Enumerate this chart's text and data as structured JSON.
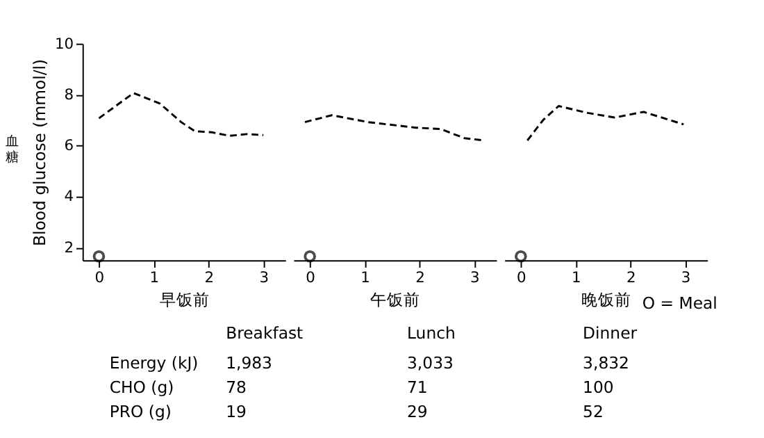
{
  "chart_data": [
    {
      "type": "line",
      "ylabel": "Blood glucose (mmol/l)",
      "xlabel": "早饭前",
      "xlim": [
        -0.3,
        3.4
      ],
      "xticks": [
        0,
        1,
        2,
        3
      ],
      "ylim": [
        1.5,
        10
      ],
      "yticks": [
        2,
        4,
        6,
        8,
        10
      ],
      "grid": false,
      "annotations": [
        "血糖"
      ],
      "series": [
        {
          "color": "#000000",
          "line_style": "dashed",
          "x": [
            0,
            0.63,
            1.11,
            1.5,
            1.75,
            2.06,
            2.38,
            2.7,
            3.0
          ],
          "values": [
            7.07,
            8.06,
            7.65,
            6.92,
            6.56,
            6.52,
            6.38,
            6.45,
            6.41
          ]
        },
        {
          "type": "scatter",
          "marker": "circle",
          "color": "#000000",
          "x": [
            0
          ],
          "values": [
            1.65
          ]
        }
      ]
    },
    {
      "type": "line",
      "xlabel": "午饭前",
      "xlim": [
        -0.3,
        3.4
      ],
      "xticks": [
        0,
        1,
        2,
        3
      ],
      "ylim": [
        1.5,
        10
      ],
      "tick_labels": "x",
      "grid": false,
      "series": [
        {
          "color": "#000000",
          "line_style": "dashed",
          "x": [
            -0.09,
            0.4,
            1.06,
            1.94,
            2.38,
            2.82,
            3.17
          ],
          "values": [
            6.92,
            7.19,
            6.92,
            6.7,
            6.65,
            6.29,
            6.2
          ]
        },
        {
          "type": "scatter",
          "marker": "circle",
          "color": "#000000",
          "x": [
            0
          ],
          "values": [
            1.65
          ]
        }
      ]
    },
    {
      "type": "line",
      "xlabel": "晚饭前",
      "xlim": [
        -0.3,
        3.4
      ],
      "xticks": [
        0,
        1,
        2,
        3
      ],
      "ylim": [
        1.5,
        10
      ],
      "tick_labels": "x",
      "grid": false,
      "annotations": [
        "O = Meal"
      ],
      "series": [
        {
          "color": "#000000",
          "line_style": "dashed",
          "x": [
            0.12,
            0.41,
            0.69,
            1.22,
            1.71,
            2.24,
            2.97
          ],
          "values": [
            6.2,
            7.01,
            7.55,
            7.28,
            7.1,
            7.32,
            6.83
          ]
        },
        {
          "type": "scatter",
          "marker": "circle",
          "color": "#000000",
          "x": [
            0
          ],
          "values": [
            1.65
          ]
        }
      ]
    },
    {
      "type": "other",
      "annotations": [
        "Breakfast",
        "Lunch",
        "Dinner",
        "Energy (kJ)",
        "1,983",
        "3,033",
        "3,832",
        "CHO (g)",
        "78",
        "71",
        "100",
        "PRO (g)",
        "19",
        "29",
        "52"
      ]
    }
  ]
}
